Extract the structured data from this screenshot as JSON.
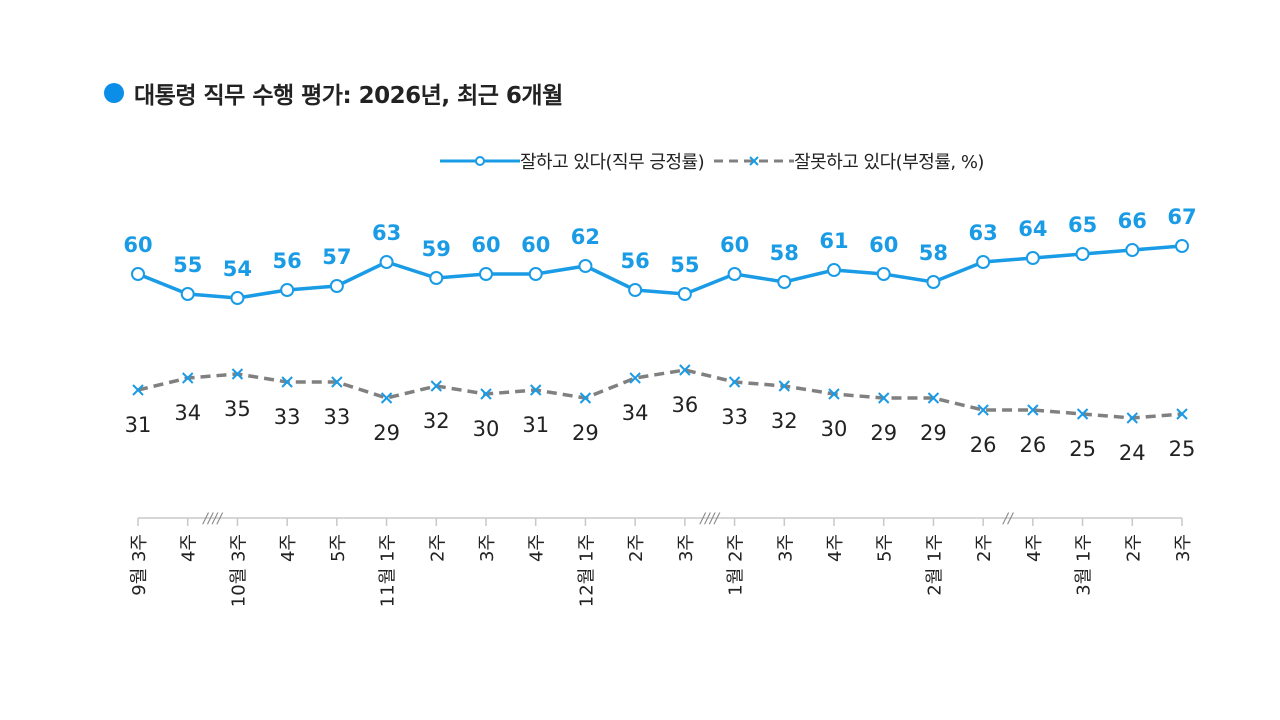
{
  "chart_data": {
    "type": "line",
    "title": "대통령 직무 수행 평가: 2026년, 최근 6개월",
    "categories": [
      "9월 3주",
      "4주",
      "10월 3주",
      "4주",
      "5주",
      "11월 1주",
      "2주",
      "3주",
      "4주",
      "12월 1주",
      "2주",
      "3주",
      "1월 2주",
      "3주",
      "4주",
      "5주",
      "2월 1주",
      "2주",
      "4주",
      "3월 1주",
      "2주",
      "3주"
    ],
    "axis_breaks": [
      "////",
      "////",
      "//"
    ],
    "series": [
      {
        "name": "잘하고 있다(직무 긍정률)",
        "color": "#1a9be6",
        "style": "solid",
        "marker": "circle",
        "values": [
          60,
          55,
          54,
          56,
          57,
          63,
          59,
          60,
          60,
          62,
          56,
          55,
          60,
          58,
          61,
          60,
          58,
          63,
          64,
          65,
          66,
          67
        ]
      },
      {
        "name": "잘못하고 있다(부정률, %)",
        "color": "#808080",
        "style": "dashed",
        "marker": "x",
        "values": [
          31,
          34,
          35,
          33,
          33,
          29,
          32,
          30,
          31,
          29,
          34,
          36,
          33,
          32,
          30,
          29,
          29,
          26,
          26,
          25,
          24,
          25
        ]
      }
    ],
    "grid": false,
    "legend": "top-right",
    "data_labels": true
  }
}
